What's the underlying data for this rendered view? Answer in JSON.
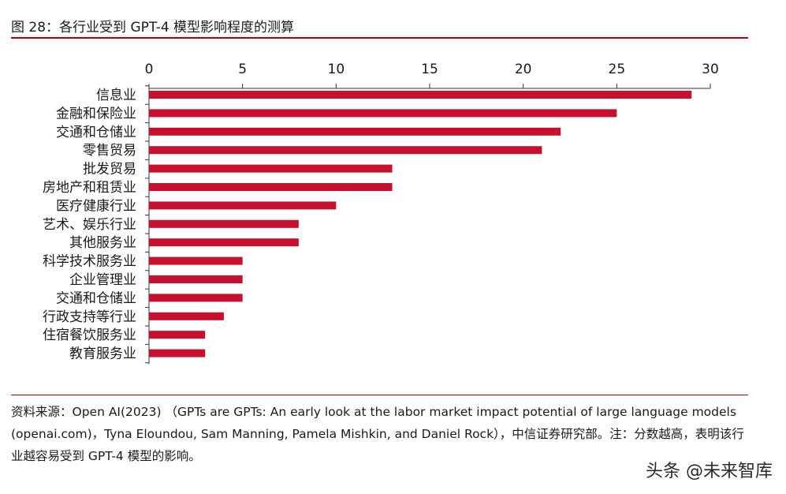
{
  "figure": {
    "title": "图 28：各行业受到 GPT-4 模型影响程度的测算"
  },
  "chart_data": {
    "type": "bar",
    "orientation": "horizontal",
    "categories": [
      "信息业",
      "金融和保险业",
      "交通和仓储业",
      "零售贸易",
      "批发贸易",
      "房地产和租赁业",
      "医疗健康行业",
      "艺术、娱乐行业",
      "其他服务业",
      "科学技术服务业",
      "企业管理业",
      "交通和仓储业",
      "行政支持等行业",
      "住宿餐饮服务业",
      "教育服务业"
    ],
    "values": [
      29,
      25,
      22,
      21,
      13,
      13,
      10,
      8,
      8,
      5,
      5,
      5,
      4,
      3,
      3
    ],
    "xlim": [
      0,
      30
    ],
    "x_ticks": [
      0,
      5,
      10,
      15,
      20,
      25,
      30
    ],
    "x_axis_position": "top",
    "grid": false,
    "bar_color": "#c8102e",
    "title": "",
    "xlabel": "",
    "ylabel": ""
  },
  "source": {
    "text": "资料来源：Open AI(2023) （GPTs are GPTs: An early look at the labor market impact potential of large language models (openai.com)，Tyna Eloundou, Sam Manning, Pamela Mishkin, and Daniel Rock），中信证券研究部。注：分数越高，表明该行业越容易受到 GPT-4 模型的影响。"
  },
  "watermark": {
    "text": "头条 @未来智库"
  },
  "colors": {
    "accent": "#c00000",
    "bar": "#c8102e",
    "text": "#1a1a1a"
  }
}
